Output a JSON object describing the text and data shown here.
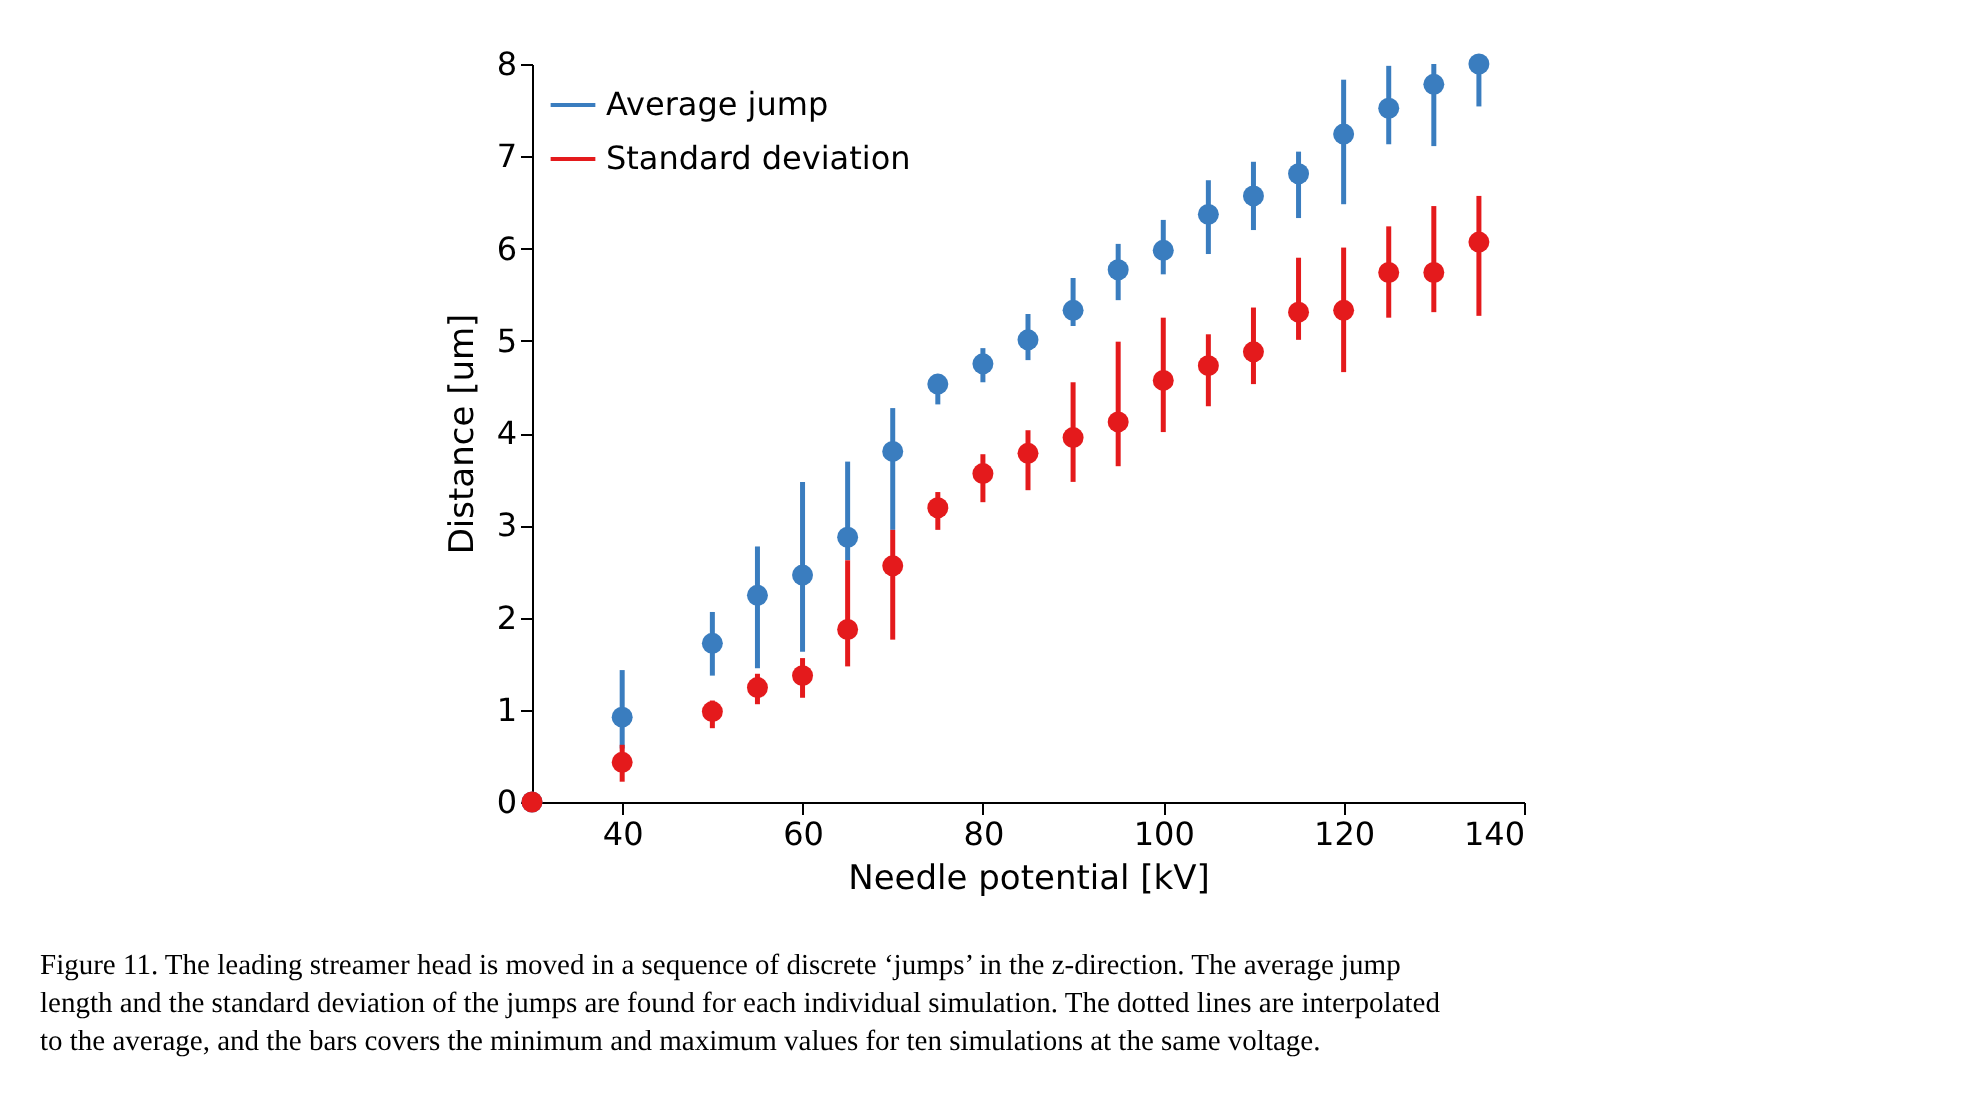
{
  "chart_data": {
    "type": "scatter",
    "xlabel": "Needle potential [kV]",
    "ylabel": "Distance [um]",
    "x": [
      30,
      40,
      50,
      55,
      60,
      65,
      70,
      75,
      80,
      85,
      90,
      95,
      100,
      105,
      110,
      115,
      120,
      125,
      130,
      135
    ],
    "series": [
      {
        "name": "Average jump",
        "color": "#3a7dbf",
        "values": [
          0,
          0.92,
          1.72,
          2.24,
          2.46,
          2.87,
          3.8,
          4.53,
          4.75,
          5.01,
          5.33,
          5.77,
          5.98,
          6.37,
          6.57,
          6.81,
          7.24,
          7.52,
          7.78,
          8.0
        ],
        "errors": [
          null,
          [
            0.58,
            1.43
          ],
          [
            1.37,
            2.06
          ],
          [
            1.45,
            2.77
          ],
          [
            1.63,
            3.47
          ],
          [
            2.62,
            3.69
          ],
          [
            2.95,
            4.27
          ],
          [
            4.31,
            4.64
          ],
          [
            4.55,
            4.92
          ],
          [
            4.79,
            5.29
          ],
          [
            5.16,
            5.68
          ],
          [
            5.44,
            6.05
          ],
          [
            5.72,
            6.31
          ],
          [
            5.94,
            6.74
          ],
          [
            6.2,
            6.94
          ],
          [
            6.33,
            7.05
          ],
          [
            6.48,
            7.83
          ],
          [
            7.13,
            7.98
          ],
          [
            7.11,
            8.0
          ],
          [
            7.54,
            8.0
          ]
        ]
      },
      {
        "name": "Standard deviation",
        "color": "#e41a1c",
        "values": [
          0,
          0.43,
          0.98,
          1.24,
          1.37,
          1.87,
          2.56,
          3.19,
          3.56,
          3.78,
          3.95,
          4.12,
          4.57,
          4.73,
          4.88,
          5.31,
          5.33,
          5.74,
          5.74,
          6.07
        ],
        "errors": [
          null,
          [
            0.22,
            0.62
          ],
          [
            0.8,
            1.1
          ],
          [
            1.06,
            1.39
          ],
          [
            1.13,
            1.56
          ],
          [
            1.47,
            2.62
          ],
          [
            1.76,
            2.95
          ],
          [
            2.95,
            3.36
          ],
          [
            3.25,
            3.77
          ],
          [
            3.38,
            4.03
          ],
          [
            3.47,
            4.55
          ],
          [
            3.64,
            4.99
          ],
          [
            4.01,
            5.25
          ],
          [
            4.29,
            5.07
          ],
          [
            4.53,
            5.36
          ],
          [
            5.01,
            5.9
          ],
          [
            4.66,
            6.01
          ],
          [
            5.25,
            6.24
          ],
          [
            5.31,
            6.46
          ],
          [
            5.27,
            6.57
          ]
        ]
      }
    ],
    "xlim": [
      30,
      140
    ],
    "xticks": [
      40,
      60,
      80,
      100,
      120,
      140
    ],
    "ylim": [
      0,
      8
    ],
    "yticks": [
      0,
      1,
      2,
      3,
      4,
      5,
      6,
      7,
      8
    ],
    "marker": "circle",
    "grid": false,
    "legend": "top left",
    "annotations": [
      "Figure 11. The leading streamer head is moved in a sequence of discrete ‘jumps’ in the z-direction. The average jump length and the standard deviation of the jumps are found for each individual simulation. The dotted lines are interpolated to the average, and the bars covers the minimum and maximum values for ten simulations at the same voltage."
    ]
  }
}
